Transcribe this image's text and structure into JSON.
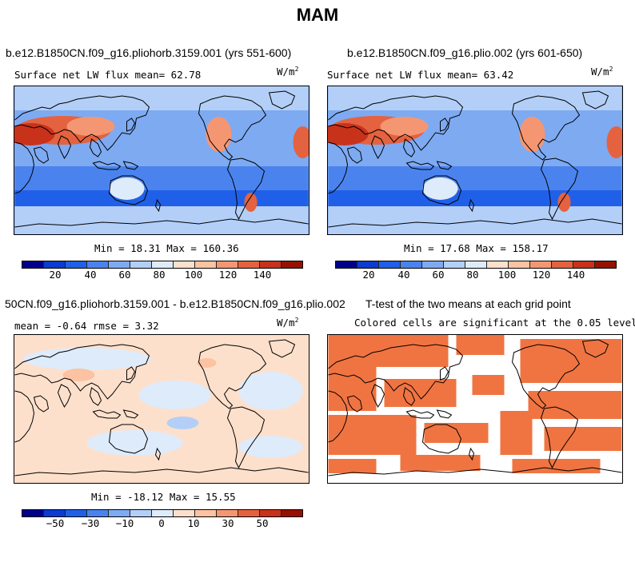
{
  "title": "MAM",
  "panels": {
    "p1": {
      "title": "b.e12.B1850CN.f09_g16.pliohorb.3159.001 (yrs 551-600)",
      "left_label": "Surface net LW flux mean=   62.78",
      "units_base": "W/m",
      "units_exp": "2",
      "minmax": "Min =  18.31 Max = 160.36"
    },
    "p2": {
      "title": "b.e12.B1850CN.f09_g16.plio.002 (yrs 601-650)",
      "left_label": "Surface net LW flux mean=   63.42",
      "units_base": "W/m",
      "units_exp": "2",
      "minmax": "Min =  17.68 Max = 158.17"
    },
    "p3": {
      "title": "50CN.f09_g16.pliohorb.3159.001 - b.e12.B1850CN.f09_g16.plio.002",
      "left_label": "mean =  -0.64    rmse =   3.32",
      "units_base": "W/m",
      "units_exp": "2",
      "minmax": "Min = -18.12 Max =  15.55"
    },
    "p4": {
      "title": "T-test of the two means at each grid point",
      "subtitle": "Colored cells are significant at the 0.05 level"
    }
  },
  "colorbar_colors": [
    "#00008b",
    "#0b3bd0",
    "#2060e8",
    "#4a83ee",
    "#7eaaf2",
    "#b3cff7",
    "#deebfb",
    "#fde0cc",
    "#fbc3a2",
    "#f59672",
    "#e4623f",
    "#c8321b",
    "#961100"
  ],
  "colorbar_abs_ticks": [
    "20",
    "40",
    "60",
    "80",
    "100",
    "120",
    "140"
  ],
  "colorbar_diff_ticks": [
    "−50",
    "−30",
    "−10",
    "0",
    "10",
    "30",
    "50"
  ],
  "ttest_color": "#f07441"
}
